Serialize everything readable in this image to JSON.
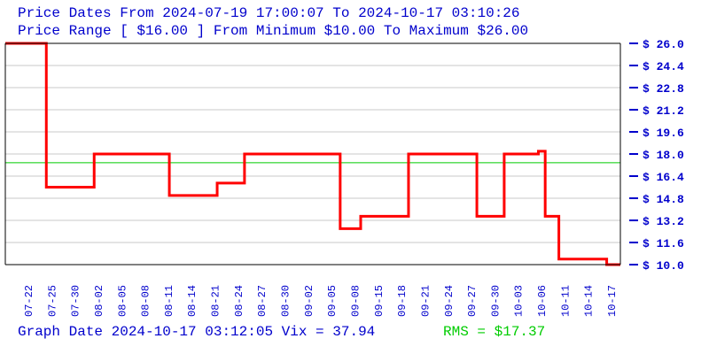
{
  "header": {
    "line1": "Price Dates From 2024-07-19 17:00:07 To 2024-10-17 03:10:26",
    "line2": "Price Range [ $16.00 ] From Minimum $10.00 To Maximum $26.00"
  },
  "footer": {
    "left": "Graph Date 2024-10-17 03:12:05 Vix = 37.94",
    "rms": "RMS = $17.37"
  },
  "colors": {
    "text": "#0000cc",
    "price_line": "#ff0000",
    "rms_line": "#00cc00",
    "grid": "#c8c8c8",
    "axis": "#000000"
  },
  "chart_data": {
    "type": "line",
    "step": true,
    "ylim": [
      10.0,
      26.0
    ],
    "xlim": [
      "2024-07-19",
      "2024-10-17"
    ],
    "y_tick_labels": [
      "$ 26.0",
      "$ 24.4",
      "$ 22.8",
      "$ 21.2",
      "$ 19.6",
      "$ 18.0",
      "$ 16.4",
      "$ 14.8",
      "$ 13.2",
      "$ 11.6",
      "$ 10.0"
    ],
    "y_tick_values": [
      26.0,
      24.4,
      22.8,
      21.2,
      19.6,
      18.0,
      16.4,
      14.8,
      13.2,
      11.6,
      10.0
    ],
    "x_tick_labels": [
      "07-22",
      "07-25",
      "07-30",
      "08-02",
      "08-05",
      "08-08",
      "08-11",
      "08-14",
      "08-21",
      "08-24",
      "08-27",
      "08-30",
      "09-02",
      "09-05",
      "09-08",
      "09-15",
      "09-18",
      "09-21",
      "09-24",
      "09-27",
      "09-30",
      "10-03",
      "10-06",
      "10-11",
      "10-14",
      "10-17"
    ],
    "rms": 17.37,
    "grid": true,
    "series": [
      {
        "values": [
          {
            "x": "2024-07-19",
            "y": 26.0
          },
          {
            "x": "2024-07-25",
            "y": 15.6
          },
          {
            "x": "2024-08-01",
            "y": 18.0
          },
          {
            "x": "2024-08-12",
            "y": 15.0
          },
          {
            "x": "2024-08-19",
            "y": 15.9
          },
          {
            "x": "2024-08-23",
            "y": 18.0
          },
          {
            "x": "2024-09-06",
            "y": 12.6
          },
          {
            "x": "2024-09-09",
            "y": 13.5
          },
          {
            "x": "2024-09-16",
            "y": 18.0
          },
          {
            "x": "2024-09-26",
            "y": 13.5
          },
          {
            "x": "2024-09-30",
            "y": 18.0
          },
          {
            "x": "2024-10-05",
            "y": 18.2
          },
          {
            "x": "2024-10-06",
            "y": 13.5
          },
          {
            "x": "2024-10-08",
            "y": 10.4
          },
          {
            "x": "2024-10-15",
            "y": 10.0
          },
          {
            "x": "2024-10-17",
            "y": 10.0
          }
        ]
      }
    ]
  }
}
